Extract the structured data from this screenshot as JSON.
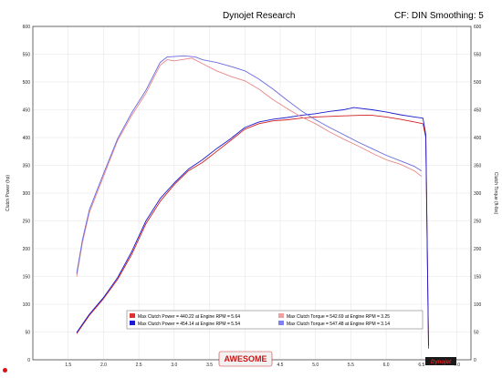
{
  "header": {
    "title": "Dynojet Research",
    "cf": "CF: DIN Smoothing: 5"
  },
  "logo": {
    "brand": "AWESOME",
    "dyno_logo": "Dynojet"
  },
  "legend": {
    "entries": [
      {
        "color": "#e03030",
        "text": "Max Clutch Power = 440.22 at Engine RPM = 5.64"
      },
      {
        "color": "#1a1ad8",
        "text": "Max Clutch Power = 454.14 at Engine RPM = 5.54"
      },
      {
        "color": "#f0a0a0",
        "text": "Max Clutch Torque = 542.69 at Engine RPM = 3.25"
      },
      {
        "color": "#8080f0",
        "text": "Max Clutch Torque = 547.48 at Engine RPM = 3.14"
      }
    ]
  },
  "colors": {
    "run1_power": "#d02020",
    "run2_power": "#1a1ad0",
    "run1_torque": "#e88888",
    "run2_torque": "#6a6ae0",
    "grid": "#e6e6e6"
  },
  "chart_data": {
    "type": "line",
    "title": "Dynojet Research",
    "xlabel": "",
    "ylabel": "Clutch Power (hp)",
    "ylabel_right": "Clutch Torque (ft-lbs)",
    "xlim": [
      1.0,
      7.2
    ],
    "ylim": [
      0,
      600
    ],
    "ylim_right": [
      0,
      600
    ],
    "x_ticks": [
      "1.5",
      "2.0",
      "2.5",
      "3.0",
      "3.5",
      "4.0",
      "4.5",
      "5.0",
      "5.5",
      "6.0",
      "6.5",
      "7.0"
    ],
    "y_ticks": [
      "0",
      "50",
      "100",
      "150",
      "200",
      "250",
      "300",
      "350",
      "400",
      "450",
      "500",
      "550",
      "600"
    ],
    "grid": true,
    "series": [
      {
        "name": "Run 1 Clutch Power",
        "color": "#d02020",
        "x": [
          1.62,
          1.8,
          2.0,
          2.2,
          2.4,
          2.6,
          2.8,
          3.0,
          3.2,
          3.4,
          3.6,
          3.8,
          4.0,
          4.2,
          4.4,
          4.6,
          4.8,
          5.0,
          5.2,
          5.4,
          5.64,
          5.8,
          6.0,
          6.2,
          6.4,
          6.52,
          6.56,
          6.6
        ],
        "y": [
          47,
          80,
          110,
          145,
          190,
          245,
          285,
          315,
          340,
          355,
          375,
          395,
          415,
          425,
          430,
          432,
          435,
          437,
          438,
          439,
          440,
          440,
          437,
          433,
          428,
          425,
          400,
          20
        ]
      },
      {
        "name": "Run 2 Clutch Power",
        "color": "#1a1ad0",
        "x": [
          1.62,
          1.8,
          2.0,
          2.2,
          2.4,
          2.6,
          2.8,
          3.0,
          3.2,
          3.4,
          3.6,
          3.8,
          4.0,
          4.2,
          4.4,
          4.6,
          4.8,
          5.0,
          5.2,
          5.4,
          5.54,
          5.8,
          6.0,
          6.2,
          6.4,
          6.52,
          6.56,
          6.6
        ],
        "y": [
          49,
          82,
          112,
          148,
          195,
          250,
          290,
          318,
          343,
          360,
          380,
          398,
          418,
          428,
          433,
          436,
          440,
          443,
          447,
          450,
          454,
          450,
          446,
          441,
          437,
          435,
          405,
          25
        ]
      },
      {
        "name": "Run 1 Clutch Torque",
        "color": "#e88888",
        "x": [
          1.62,
          1.7,
          1.8,
          2.0,
          2.2,
          2.4,
          2.6,
          2.8,
          2.9,
          3.0,
          3.25,
          3.4,
          3.6,
          3.8,
          4.0,
          4.2,
          4.4,
          4.6,
          4.8,
          5.0,
          5.2,
          5.4,
          5.6,
          5.8,
          6.0,
          6.2,
          6.4,
          6.5
        ],
        "y": [
          150,
          210,
          265,
          330,
          395,
          440,
          480,
          530,
          540,
          538,
          543,
          533,
          520,
          510,
          502,
          487,
          468,
          452,
          437,
          425,
          410,
          397,
          385,
          372,
          360,
          352,
          340,
          330
        ]
      },
      {
        "name": "Run 2 Clutch Torque",
        "color": "#6a6ae0",
        "x": [
          1.62,
          1.7,
          1.8,
          2.0,
          2.2,
          2.4,
          2.6,
          2.8,
          2.9,
          3.14,
          3.3,
          3.4,
          3.6,
          3.8,
          4.0,
          4.2,
          4.4,
          4.6,
          4.8,
          5.0,
          5.2,
          5.4,
          5.6,
          5.8,
          6.0,
          6.2,
          6.4,
          6.5
        ],
        "y": [
          155,
          215,
          270,
          335,
          398,
          445,
          485,
          535,
          545,
          547,
          545,
          540,
          535,
          528,
          520,
          505,
          487,
          467,
          448,
          432,
          418,
          405,
          392,
          380,
          368,
          358,
          348,
          340
        ]
      }
    ]
  }
}
